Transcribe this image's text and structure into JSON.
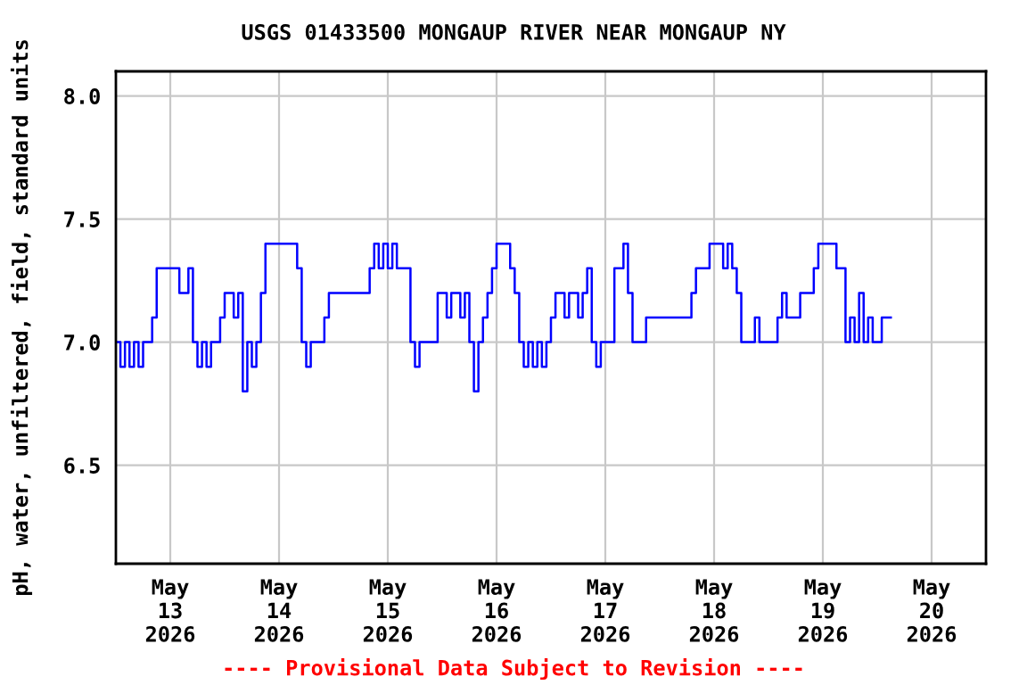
{
  "chart_data": {
    "type": "step",
    "title": "USGS 01433500 MONGAUP RIVER NEAR MONGAUP NY",
    "ylabel": "pH, water, unfiltered, field, standard units",
    "x": [
      "2026-05-12T12:00",
      "2026-05-12T13:00",
      "2026-05-12T14:00",
      "2026-05-12T15:00",
      "2026-05-12T16:00",
      "2026-05-12T17:00",
      "2026-05-12T18:00",
      "2026-05-12T20:00",
      "2026-05-12T21:00",
      "2026-05-13T02:00",
      "2026-05-13T04:00",
      "2026-05-13T05:00",
      "2026-05-13T06:00",
      "2026-05-13T07:00",
      "2026-05-13T08:00",
      "2026-05-13T09:00",
      "2026-05-13T11:00",
      "2026-05-13T12:00",
      "2026-05-13T14:00",
      "2026-05-13T15:00",
      "2026-05-13T16:00",
      "2026-05-13T17:00",
      "2026-05-13T18:00",
      "2026-05-13T19:00",
      "2026-05-13T20:00",
      "2026-05-13T21:00",
      "2026-05-14T04:00",
      "2026-05-14T05:00",
      "2026-05-14T06:00",
      "2026-05-14T07:00",
      "2026-05-14T10:00",
      "2026-05-14T11:00",
      "2026-05-14T20:00",
      "2026-05-14T21:00",
      "2026-05-14T22:00",
      "2026-05-14T23:00",
      "2026-05-15T00:00",
      "2026-05-15T01:00",
      "2026-05-15T02:00",
      "2026-05-15T05:00",
      "2026-05-15T06:00",
      "2026-05-15T07:00",
      "2026-05-15T11:00",
      "2026-05-15T13:00",
      "2026-05-15T14:00",
      "2026-05-15T16:00",
      "2026-05-15T17:00",
      "2026-05-15T18:00",
      "2026-05-15T19:00",
      "2026-05-15T20:00",
      "2026-05-15T21:00",
      "2026-05-15T22:00",
      "2026-05-15T23:00",
      "2026-05-16T00:00",
      "2026-05-16T03:00",
      "2026-05-16T04:00",
      "2026-05-16T05:00",
      "2026-05-16T06:00",
      "2026-05-16T07:00",
      "2026-05-16T08:00",
      "2026-05-16T09:00",
      "2026-05-16T10:00",
      "2026-05-16T11:00",
      "2026-05-16T12:00",
      "2026-05-16T13:00",
      "2026-05-16T15:00",
      "2026-05-16T16:00",
      "2026-05-16T18:00",
      "2026-05-16T19:00",
      "2026-05-16T20:00",
      "2026-05-16T21:00",
      "2026-05-16T22:00",
      "2026-05-16T23:00",
      "2026-05-17T02:00",
      "2026-05-17T04:00",
      "2026-05-17T05:00",
      "2026-05-17T06:00",
      "2026-05-17T09:00",
      "2026-05-17T19:00",
      "2026-05-17T20:00",
      "2026-05-17T23:00",
      "2026-05-18T02:00",
      "2026-05-18T03:00",
      "2026-05-18T04:00",
      "2026-05-18T05:00",
      "2026-05-18T06:00",
      "2026-05-18T09:00",
      "2026-05-18T10:00",
      "2026-05-18T14:00",
      "2026-05-18T15:00",
      "2026-05-18T16:00",
      "2026-05-18T19:00",
      "2026-05-18T22:00",
      "2026-05-18T23:00",
      "2026-05-19T03:00",
      "2026-05-19T05:00",
      "2026-05-19T06:00",
      "2026-05-19T07:00",
      "2026-05-19T08:00",
      "2026-05-19T09:00",
      "2026-05-19T10:00",
      "2026-05-19T11:00",
      "2026-05-19T12:00",
      "2026-05-19T13:00",
      "2026-05-19T15:00"
    ],
    "series": [
      {
        "color": "#0000ff",
        "values": [
          7.0,
          6.9,
          7.0,
          6.9,
          7.0,
          6.9,
          7.0,
          7.1,
          7.3,
          7.2,
          7.3,
          7.0,
          6.9,
          7.0,
          6.9,
          7.0,
          7.1,
          7.2,
          7.1,
          7.2,
          6.8,
          7.0,
          6.9,
          7.0,
          7.2,
          7.4,
          7.3,
          7.0,
          6.9,
          7.0,
          7.1,
          7.2,
          7.3,
          7.4,
          7.3,
          7.4,
          7.3,
          7.4,
          7.3,
          7.0,
          6.9,
          7.0,
          7.2,
          7.1,
          7.2,
          7.1,
          7.2,
          7.0,
          6.8,
          7.0,
          7.1,
          7.2,
          7.3,
          7.4,
          7.3,
          7.2,
          7.0,
          6.9,
          7.0,
          6.9,
          7.0,
          6.9,
          7.0,
          7.1,
          7.2,
          7.1,
          7.2,
          7.1,
          7.2,
          7.3,
          7.0,
          6.9,
          7.0,
          7.3,
          7.4,
          7.2,
          7.0,
          7.1,
          7.2,
          7.3,
          7.4,
          7.3,
          7.4,
          7.3,
          7.2,
          7.0,
          7.1,
          7.0,
          7.1,
          7.2,
          7.1,
          7.2,
          7.3,
          7.4,
          7.3,
          7.0,
          7.1,
          7.0,
          7.2,
          7.0,
          7.1,
          7.0,
          7.0,
          7.1,
          7.1
        ]
      }
    ],
    "xlim": [
      "2026-05-12T12:00",
      "2026-05-20T12:00"
    ],
    "xticks": [
      {
        "value": "2026-05-13",
        "label": "May\n13\n2026"
      },
      {
        "value": "2026-05-14",
        "label": "May\n14\n2026"
      },
      {
        "value": "2026-05-15",
        "label": "May\n15\n2026"
      },
      {
        "value": "2026-05-16",
        "label": "May\n16\n2026"
      },
      {
        "value": "2026-05-17",
        "label": "May\n17\n2026"
      },
      {
        "value": "2026-05-18",
        "label": "May\n18\n2026"
      },
      {
        "value": "2026-05-19",
        "label": "May\n19\n2026"
      },
      {
        "value": "2026-05-20",
        "label": "May\n20\n2026"
      }
    ],
    "ylim": [
      6.1,
      8.1
    ],
    "yticks": [
      {
        "value": 6.5,
        "label": "6.5"
      },
      {
        "value": 7.0,
        "label": "7.0"
      },
      {
        "value": 7.5,
        "label": "7.5"
      },
      {
        "value": 8.0,
        "label": "8.0"
      }
    ],
    "grid": true,
    "annotations": [
      "---- Provisional Data Subject to Revision ----"
    ]
  }
}
